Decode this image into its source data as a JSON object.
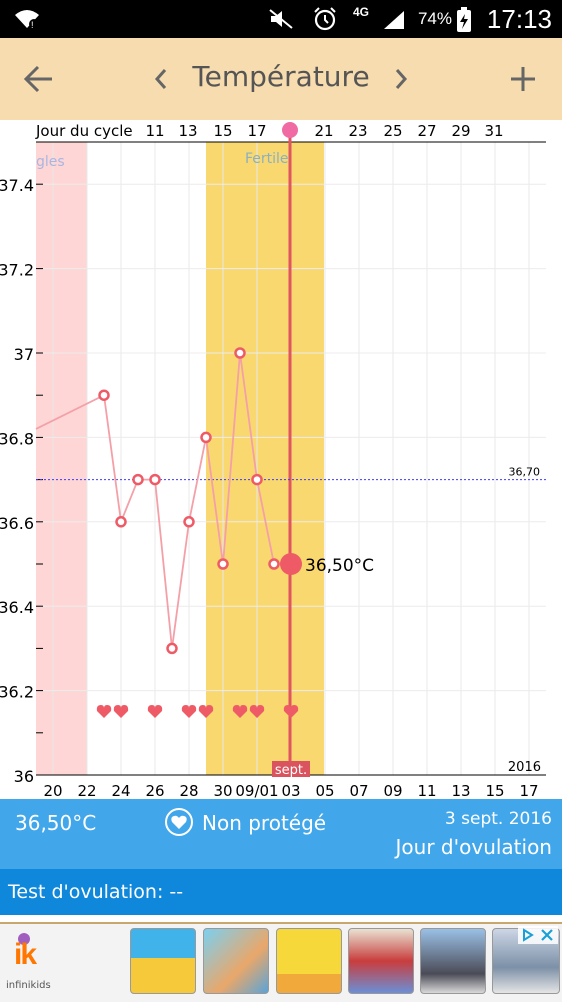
{
  "status_bar": {
    "network": "4G",
    "battery": "74%",
    "time": "17:13"
  },
  "toolbar": {
    "title": "Température",
    "back_icon": "arrow-left-icon",
    "prev_icon": "chevron-left-icon",
    "next_icon": "chevron-right-icon",
    "add_icon": "plus-icon"
  },
  "colors": {
    "toolbar_bg": "#f6dcae",
    "period_band": "#ffd6d6",
    "fertile_band": "#f9d870",
    "ovulation_line": "#e05560",
    "temp_line": "#f4a0a8",
    "marker": "#ee5b66",
    "baseline": "#3b3bff",
    "info_bar": "#42a7ea",
    "test_bar": "#0f87db"
  },
  "chart_data": {
    "type": "line",
    "title": "",
    "top_axis": {
      "label": "Jour du cycle",
      "ticks": [
        "11",
        "13",
        "15",
        "17",
        "21",
        "23",
        "25",
        "27",
        "29",
        "31"
      ]
    },
    "x_tick_labels": [
      "20",
      "22",
      "24",
      "26",
      "28",
      "30",
      "09/01",
      "03",
      "05",
      "07",
      "09",
      "11",
      "13",
      "15",
      "17"
    ],
    "y_tick_labels": [
      "36",
      "36.2",
      "36.4",
      "36.6",
      "36.8",
      "37",
      "37.2",
      "37.4"
    ],
    "ylim": [
      36.0,
      37.5
    ],
    "grid": true,
    "year_label": "2016",
    "month_label": "sept.",
    "period_band_label": "gles",
    "fertile_label": "Fertile",
    "baseline": {
      "value": 36.7,
      "label": "36,70"
    },
    "series": [
      {
        "points": [
          {
            "x": "08/23",
            "y": 36.9
          },
          {
            "x": "08/24",
            "y": 36.6
          },
          {
            "x": "08/25",
            "y": 36.7
          },
          {
            "x": "08/26",
            "y": 36.7
          },
          {
            "x": "08/27",
            "y": 36.3
          },
          {
            "x": "08/28",
            "y": 36.6
          },
          {
            "x": "08/29",
            "y": 36.8
          },
          {
            "x": "08/30",
            "y": 36.5
          },
          {
            "x": "08/31",
            "y": 37.0
          },
          {
            "x": "09/01",
            "y": 36.7
          },
          {
            "x": "09/02",
            "y": 36.5
          },
          {
            "x": "09/03",
            "y": 36.5
          }
        ]
      }
    ],
    "selected_label": "36,50°C",
    "heart_days": [
      "08/23",
      "08/24",
      "08/26",
      "08/28",
      "08/29",
      "08/31",
      "09/01",
      "09/03"
    ]
  },
  "info_bar": {
    "temperature": "36,50°C",
    "protection": "Non protégé",
    "date": "3 sept. 2016",
    "phase": "Jour d'ovulation"
  },
  "test_bar": {
    "label": "Test d'ovulation: --"
  },
  "ad": {
    "brand_text": "infinikids",
    "logo_text": "ik"
  }
}
